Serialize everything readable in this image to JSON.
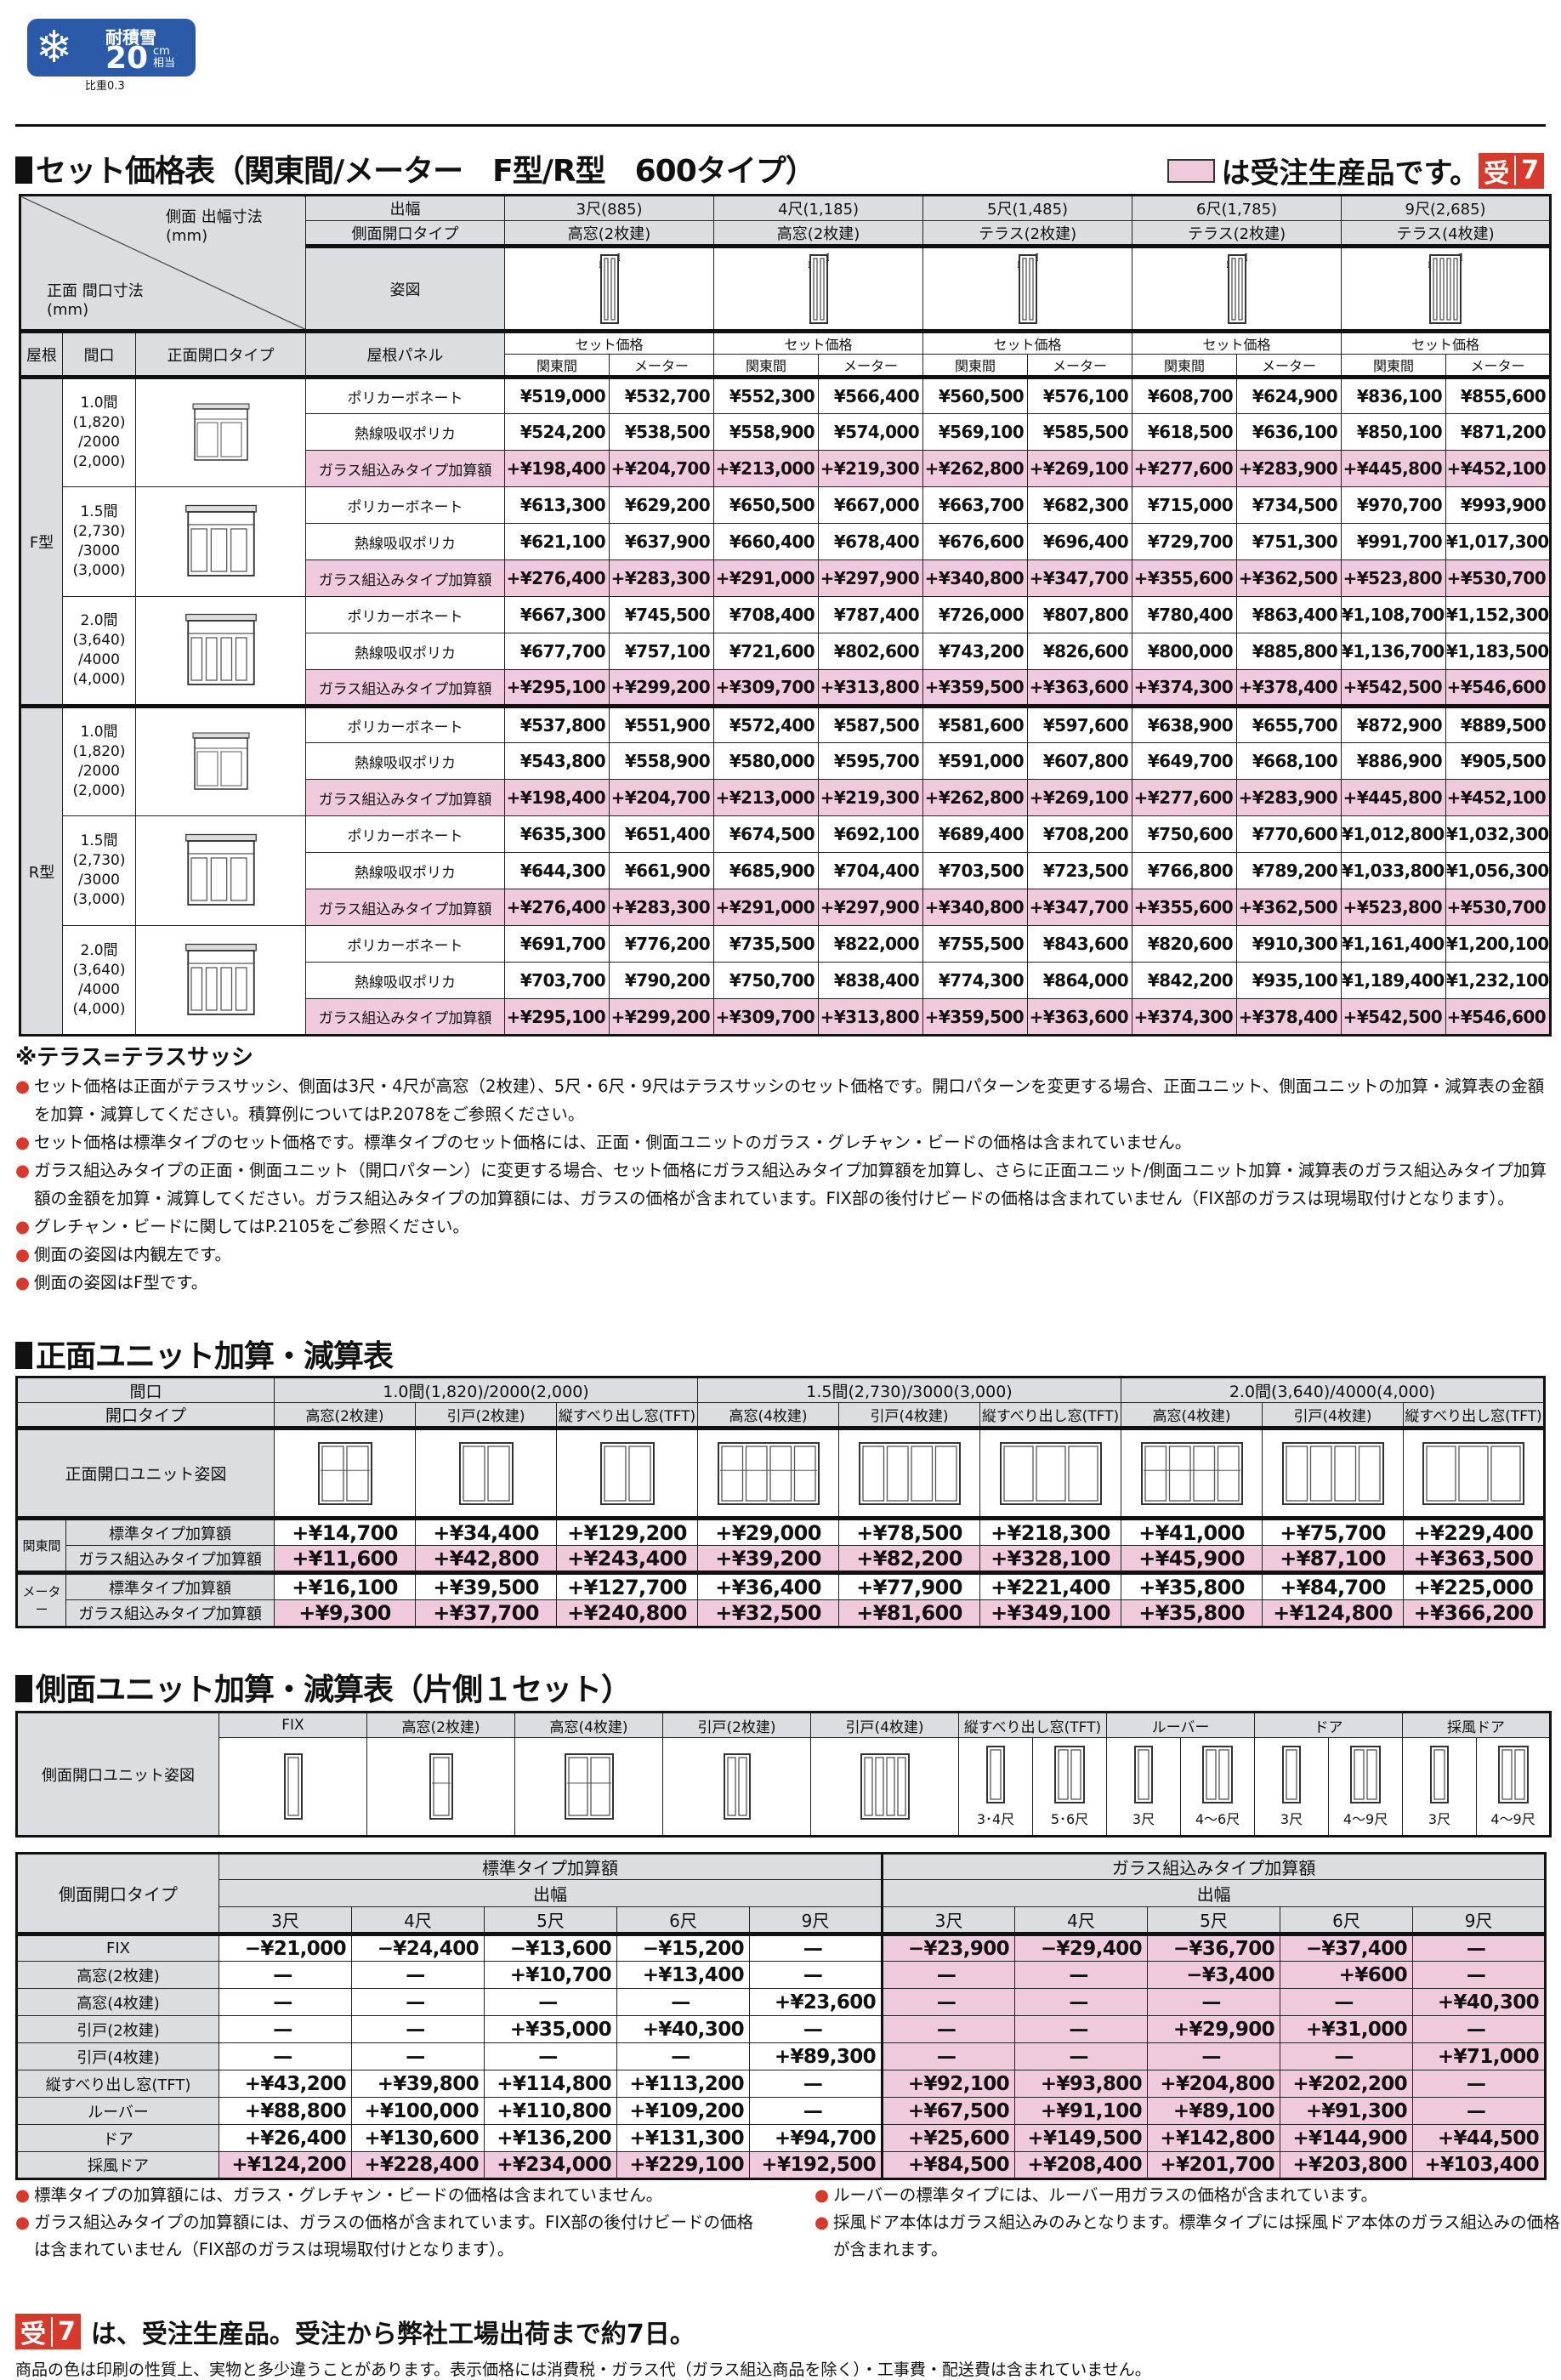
{
  "badge": {
    "icon": "snowflake-icon",
    "label": "耐積雪",
    "value": "20",
    "unit": "cm相当",
    "ratio": "比重0.3",
    "color": "#2b5ba8"
  },
  "section1": {
    "title": "セット価格表（関東間/メーター　F型/R型　600タイプ）",
    "legend_text": "は受注生産品です。",
    "order_badge": {
      "kanji": "受",
      "days": "7"
    },
    "pink": "#efcadc"
  },
  "main": {
    "corner_side": "側面 出幅寸法(mm)",
    "corner_front": "正面 間口寸法(mm)",
    "row_width": "出幅",
    "row_side_type": "側面開口タイプ",
    "row_figure": "姿図",
    "col_roof": "屋根",
    "col_span": "間口",
    "col_front_type": "正面開口タイプ",
    "col_panel": "屋根パネル",
    "set_price": "セット価格",
    "kanto": "関東間",
    "meter": "メーター",
    "columns": [
      {
        "width": "3尺(885)",
        "type": "高窓(2枚建)"
      },
      {
        "width": "4尺(1,185)",
        "type": "高窓(2枚建)"
      },
      {
        "width": "5尺(1,485)",
        "type": "テラス(2枚建)"
      },
      {
        "width": "6尺(1,785)",
        "type": "テラス(2枚建)"
      },
      {
        "width": "9尺(2,685)",
        "type": "テラス(4枚建)"
      }
    ],
    "groups": [
      {
        "roof": "F型",
        "sizes": [
          {
            "l1": "1.0間",
            "l2": "(1,820)",
            "l3": "/2000",
            "l4": "(2,000)",
            "rows": [
              {
                "panel": "ポリカーボネート",
                "values": [
                  "¥519,000",
                  "¥532,700",
                  "¥552,300",
                  "¥566,400",
                  "¥560,500",
                  "¥576,100",
                  "¥608,700",
                  "¥624,900",
                  "¥836,100",
                  "¥855,600"
                ]
              },
              {
                "panel": "熱線吸収ポリカ",
                "values": [
                  "¥524,200",
                  "¥538,500",
                  "¥558,900",
                  "¥574,000",
                  "¥569,100",
                  "¥585,500",
                  "¥618,500",
                  "¥636,100",
                  "¥850,100",
                  "¥871,200"
                ]
              },
              {
                "panel": "ガラス組込みタイプ加算額",
                "pink": true,
                "values": [
                  "+¥198,400",
                  "+¥204,700",
                  "+¥213,000",
                  "+¥219,300",
                  "+¥262,800",
                  "+¥269,100",
                  "+¥277,600",
                  "+¥283,900",
                  "+¥445,800",
                  "+¥452,100"
                ]
              }
            ]
          },
          {
            "l1": "1.5間",
            "l2": "(2,730)",
            "l3": "/3000",
            "l4": "(3,000)",
            "rows": [
              {
                "panel": "ポリカーボネート",
                "values": [
                  "¥613,300",
                  "¥629,200",
                  "¥650,500",
                  "¥667,000",
                  "¥663,700",
                  "¥682,300",
                  "¥715,000",
                  "¥734,500",
                  "¥970,700",
                  "¥993,900"
                ]
              },
              {
                "panel": "熱線吸収ポリカ",
                "values": [
                  "¥621,100",
                  "¥637,900",
                  "¥660,400",
                  "¥678,400",
                  "¥676,600",
                  "¥696,400",
                  "¥729,700",
                  "¥751,300",
                  "¥991,700",
                  "¥1,017,300"
                ]
              },
              {
                "panel": "ガラス組込みタイプ加算額",
                "pink": true,
                "values": [
                  "+¥276,400",
                  "+¥283,300",
                  "+¥291,000",
                  "+¥297,900",
                  "+¥340,800",
                  "+¥347,700",
                  "+¥355,600",
                  "+¥362,500",
                  "+¥523,800",
                  "+¥530,700"
                ]
              }
            ]
          },
          {
            "l1": "2.0間",
            "l2": "(3,640)",
            "l3": "/4000",
            "l4": "(4,000)",
            "rows": [
              {
                "panel": "ポリカーボネート",
                "values": [
                  "¥667,300",
                  "¥745,500",
                  "¥708,400",
                  "¥787,400",
                  "¥726,000",
                  "¥807,800",
                  "¥780,400",
                  "¥863,400",
                  "¥1,108,700",
                  "¥1,152,300"
                ]
              },
              {
                "panel": "熱線吸収ポリカ",
                "values": [
                  "¥677,700",
                  "¥757,100",
                  "¥721,600",
                  "¥802,600",
                  "¥743,200",
                  "¥826,600",
                  "¥800,000",
                  "¥885,800",
                  "¥1,136,700",
                  "¥1,183,500"
                ]
              },
              {
                "panel": "ガラス組込みタイプ加算額",
                "pink": true,
                "values": [
                  "+¥295,100",
                  "+¥299,200",
                  "+¥309,700",
                  "+¥313,800",
                  "+¥359,500",
                  "+¥363,600",
                  "+¥374,300",
                  "+¥378,400",
                  "+¥542,500",
                  "+¥546,600"
                ]
              }
            ]
          }
        ]
      },
      {
        "roof": "R型",
        "sizes": [
          {
            "l1": "1.0間",
            "l2": "(1,820)",
            "l3": "/2000",
            "l4": "(2,000)",
            "rows": [
              {
                "panel": "ポリカーボネート",
                "values": [
                  "¥537,800",
                  "¥551,900",
                  "¥572,400",
                  "¥587,500",
                  "¥581,600",
                  "¥597,600",
                  "¥638,900",
                  "¥655,700",
                  "¥872,900",
                  "¥889,500"
                ]
              },
              {
                "panel": "熱線吸収ポリカ",
                "values": [
                  "¥543,800",
                  "¥558,900",
                  "¥580,000",
                  "¥595,700",
                  "¥591,000",
                  "¥607,800",
                  "¥649,700",
                  "¥668,100",
                  "¥886,900",
                  "¥905,500"
                ]
              },
              {
                "panel": "ガラス組込みタイプ加算額",
                "pink": true,
                "values": [
                  "+¥198,400",
                  "+¥204,700",
                  "+¥213,000",
                  "+¥219,300",
                  "+¥262,800",
                  "+¥269,100",
                  "+¥277,600",
                  "+¥283,900",
                  "+¥445,800",
                  "+¥452,100"
                ]
              }
            ]
          },
          {
            "l1": "1.5間",
            "l2": "(2,730)",
            "l3": "/3000",
            "l4": "(3,000)",
            "rows": [
              {
                "panel": "ポリカーボネート",
                "values": [
                  "¥635,300",
                  "¥651,400",
                  "¥674,500",
                  "¥692,100",
                  "¥689,400",
                  "¥708,200",
                  "¥750,600",
                  "¥770,600",
                  "¥1,012,800",
                  "¥1,032,300"
                ]
              },
              {
                "panel": "熱線吸収ポリカ",
                "values": [
                  "¥644,300",
                  "¥661,900",
                  "¥685,900",
                  "¥704,400",
                  "¥703,500",
                  "¥723,500",
                  "¥766,800",
                  "¥789,200",
                  "¥1,033,800",
                  "¥1,056,300"
                ]
              },
              {
                "panel": "ガラス組込みタイプ加算額",
                "pink": true,
                "values": [
                  "+¥276,400",
                  "+¥283,300",
                  "+¥291,000",
                  "+¥297,900",
                  "+¥340,800",
                  "+¥347,700",
                  "+¥355,600",
                  "+¥362,500",
                  "+¥523,800",
                  "+¥530,700"
                ]
              }
            ]
          },
          {
            "l1": "2.0間",
            "l2": "(3,640)",
            "l3": "/4000",
            "l4": "(4,000)",
            "rows": [
              {
                "panel": "ポリカーボネート",
                "values": [
                  "¥691,700",
                  "¥776,200",
                  "¥735,500",
                  "¥822,000",
                  "¥755,500",
                  "¥843,600",
                  "¥820,600",
                  "¥910,300",
                  "¥1,161,400",
                  "¥1,200,100"
                ]
              },
              {
                "panel": "熱線吸収ポリカ",
                "values": [
                  "¥703,700",
                  "¥790,200",
                  "¥750,700",
                  "¥838,400",
                  "¥774,300",
                  "¥864,000",
                  "¥842,200",
                  "¥935,100",
                  "¥1,189,400",
                  "¥1,232,100"
                ]
              },
              {
                "panel": "ガラス組込みタイプ加算額",
                "pink": true,
                "values": [
                  "+¥295,100",
                  "+¥299,200",
                  "+¥309,700",
                  "+¥313,800",
                  "+¥359,500",
                  "+¥363,600",
                  "+¥374,300",
                  "+¥378,400",
                  "+¥542,500",
                  "+¥546,600"
                ]
              }
            ]
          }
        ]
      }
    ]
  },
  "notes1": {
    "heading": "※テラス=テラスサッシ",
    "items": [
      "セット価格は正面がテラスサッシ、側面は3尺・4尺が高窓（2枚建）、5尺・6尺・9尺はテラスサッシのセット価格です。開口パターンを変更する場合、正面ユニット、側面ユニットの加算・減算表の金額を加算・減算してください。積算例についてはP.2078をご参照ください。",
      "セット価格は標準タイプのセット価格です。標準タイプのセット価格には、正面・側面ユニットのガラス・グレチャン・ビードの価格は含まれていません。",
      "ガラス組込みタイプの正面・側面ユニット（開口パターン）に変更する場合、セット価格にガラス組込みタイプ加算額を加算し、さらに正面ユニット/側面ユニット加算・減算表のガラス組込みタイプ加算額の金額を加算・減算してください。ガラス組込みタイプの加算額には、ガラスの価格が含まれています。FIX部の後付けビードの価格は含まれていません（FIX部のガラスは現場取付けとなります）。",
      "グレチャン・ビードに関してはP.2105をご参照ください。",
      "側面の姿図は内観左です。",
      "側面の姿図はF型です。"
    ]
  },
  "section2": {
    "title": "正面ユニット加算・減算表",
    "row_span": "間口",
    "row_type": "開口タイプ",
    "row_figure": "正面開口ユニット姿図",
    "spans": [
      "1.0間(1,820)/2000(2,000)",
      "1.5間(2,730)/3000(3,000)",
      "2.0間(3,640)/4000(4,000)"
    ],
    "types": [
      "高窓(2枚建)",
      "引戸(2枚建)",
      "縦すべり出し窓(TFT)",
      "高窓(4枚建)",
      "引戸(4枚建)",
      "縦すべり出し窓(TFT)",
      "高窓(4枚建)",
      "引戸(4枚建)",
      "縦すべり出し窓(TFT)"
    ],
    "groups": [
      {
        "name": "関東間",
        "rows": [
          {
            "label": "標準タイプ加算額",
            "values": [
              "+¥14,700",
              "+¥34,400",
              "+¥129,200",
              "+¥29,000",
              "+¥78,500",
              "+¥218,300",
              "+¥41,000",
              "+¥75,700",
              "+¥229,400"
            ]
          },
          {
            "label": "ガラス組込みタイプ加算額",
            "pink": true,
            "values": [
              "+¥11,600",
              "+¥42,800",
              "+¥243,400",
              "+¥39,200",
              "+¥82,200",
              "+¥328,100",
              "+¥45,900",
              "+¥87,100",
              "+¥363,500"
            ]
          }
        ]
      },
      {
        "name": "メーター",
        "rows": [
          {
            "label": "標準タイプ加算額",
            "values": [
              "+¥16,100",
              "+¥39,500",
              "+¥127,700",
              "+¥36,400",
              "+¥77,900",
              "+¥221,400",
              "+¥35,800",
              "+¥84,700",
              "+¥225,000"
            ]
          },
          {
            "label": "ガラス組込みタイプ加算額",
            "pink": true,
            "values": [
              "+¥9,300",
              "+¥37,700",
              "+¥240,800",
              "+¥32,500",
              "+¥81,600",
              "+¥349,100",
              "+¥35,800",
              "+¥124,800",
              "+¥366,200"
            ]
          }
        ]
      }
    ]
  },
  "section3": {
    "title": "側面ユニット加算・減算表（片側１セット）",
    "figure_label": "側面開口ユニット姿図",
    "units": [
      {
        "name": "FIX"
      },
      {
        "name": "高窓(2枚建)"
      },
      {
        "name": "高窓(4枚建)"
      },
      {
        "name": "引戸(2枚建)"
      },
      {
        "name": "引戸(4枚建)"
      },
      {
        "name": "縦すべり出し窓(TFT)",
        "subs": [
          "3･4尺",
          "5･6尺"
        ]
      },
      {
        "name": "ルーバー",
        "subs": [
          "3尺",
          "4〜6尺"
        ]
      },
      {
        "name": "ドア",
        "subs": [
          "3尺",
          "4〜9尺"
        ]
      },
      {
        "name": "採風ドア",
        "subs": [
          "3尺",
          "4〜9尺"
        ]
      }
    ],
    "type_label": "側面開口タイプ",
    "std_label": "標準タイプ加算額",
    "glass_label": "ガラス組込みタイプ加算額",
    "width_label": "出幅",
    "widths": [
      "3尺",
      "4尺",
      "5尺",
      "6尺",
      "9尺"
    ],
    "rows": [
      {
        "label": "FIX",
        "std": [
          "−¥21,000",
          "−¥24,400",
          "−¥13,600",
          "−¥15,200",
          "—"
        ],
        "glass": [
          "−¥23,900",
          "−¥29,400",
          "−¥36,700",
          "−¥37,400",
          "—"
        ]
      },
      {
        "label": "高窓(2枚建)",
        "std": [
          "—",
          "—",
          "+¥10,700",
          "+¥13,400",
          "—"
        ],
        "glass": [
          "—",
          "—",
          "−¥3,400",
          "+¥600",
          "—"
        ]
      },
      {
        "label": "高窓(4枚建)",
        "std": [
          "—",
          "—",
          "—",
          "—",
          "+¥23,600"
        ],
        "glass": [
          "—",
          "—",
          "—",
          "—",
          "+¥40,300"
        ]
      },
      {
        "label": "引戸(2枚建)",
        "std": [
          "—",
          "—",
          "+¥35,000",
          "+¥40,300",
          "—"
        ],
        "glass": [
          "—",
          "—",
          "+¥29,900",
          "+¥31,000",
          "—"
        ]
      },
      {
        "label": "引戸(4枚建)",
        "std": [
          "—",
          "—",
          "—",
          "—",
          "+¥89,300"
        ],
        "glass": [
          "—",
          "—",
          "—",
          "—",
          "+¥71,000"
        ]
      },
      {
        "label": "縦すべり出し窓(TFT)",
        "std": [
          "+¥43,200",
          "+¥39,800",
          "+¥114,800",
          "+¥113,200",
          "—"
        ],
        "glass": [
          "+¥92,100",
          "+¥93,800",
          "+¥204,800",
          "+¥202,200",
          "—"
        ]
      },
      {
        "label": "ルーバー",
        "std": [
          "+¥88,800",
          "+¥100,000",
          "+¥110,800",
          "+¥109,200",
          "—"
        ],
        "glass": [
          "+¥67,500",
          "+¥91,100",
          "+¥89,100",
          "+¥91,300",
          "—"
        ]
      },
      {
        "label": "ドア",
        "std": [
          "+¥26,400",
          "+¥130,600",
          "+¥136,200",
          "+¥131,300",
          "+¥94,700"
        ],
        "glass": [
          "+¥25,600",
          "+¥149,500",
          "+¥142,800",
          "+¥144,900",
          "+¥44,500"
        ]
      },
      {
        "label": "採風ドア",
        "pink_std": true,
        "std": [
          "+¥124,200",
          "+¥228,400",
          "+¥234,000",
          "+¥229,100",
          "+¥192,500"
        ],
        "glass": [
          "+¥84,500",
          "+¥208,400",
          "+¥201,700",
          "+¥203,800",
          "+¥103,400"
        ]
      }
    ],
    "notes_left": [
      "標準タイプの加算額には、ガラス・グレチャン・ビードの価格は含まれていません。",
      "ガラス組込みタイプの加算額には、ガラスの価格が含まれています。FIX部の後付けビードの価格は含まれていません（FIX部のガラスは現場取付けとなります）。"
    ],
    "notes_right": [
      "ルーバーの標準タイプには、ルーバー用ガラスの価格が含まれています。",
      "採風ドア本体はガラス組込みのみとなります。標準タイプには採風ドア本体のガラス組込みの価格が含まれます。"
    ]
  },
  "footer": {
    "line1": "は、受注生産品。受注から弊社工場出荷まで約7日。",
    "line2": "商品の色は印刷の性質上、実物と多少違うことがあります。表示価格には消費税・ガラス代（ガラス組込商品を除く）・工事費・配送費は含まれていません。"
  }
}
